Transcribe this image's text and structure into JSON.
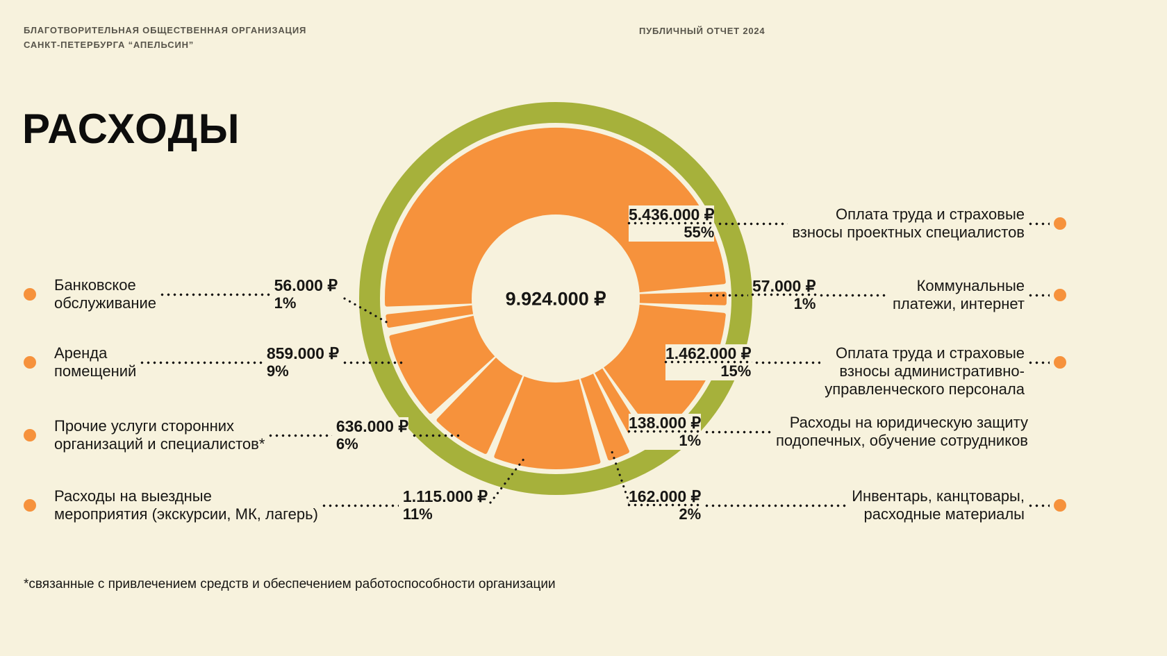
{
  "page": {
    "org_name": "БЛАГОТВОРИТЕЛЬНАЯ ОБЩЕСТВЕННАЯ ОРГАНИЗАЦИЯ\nСАНКТ-ПЕТЕРБУРГА “АПЕЛЬСИН”",
    "report_label": "ПУБЛИЧНЫЙ ОТЧЕТ 2024",
    "title": "РАСХОДЫ",
    "footnote": "*связанные с привлечением средств и обеспечением работоспособности организации"
  },
  "colors": {
    "background": "#f7f2dd",
    "orange": "#f6923c",
    "green": "#a6b13b",
    "text": "#171614"
  },
  "chart_data": {
    "type": "pie",
    "title": "РАСХОДЫ",
    "total_value": 9924000,
    "total_label": "9.924.000 ₽",
    "unit": "₽",
    "segments": [
      {
        "label": "Оплата труда и страховые\nвзносы проектных специалистов",
        "amount": "5.436.000 ₽",
        "percent": "55%",
        "value": 5436000,
        "pct": 55,
        "side": "right"
      },
      {
        "label": "Коммунальные\nплатежи, интернет",
        "amount": "57.000 ₽",
        "percent": "1%",
        "value": 57000,
        "pct": 1,
        "side": "right"
      },
      {
        "label": "Оплата труда и страховые\nвзносы административно-\nуправленческого персонала",
        "amount": "1.462.000 ₽",
        "percent": "15%",
        "value": 1462000,
        "pct": 15,
        "side": "right"
      },
      {
        "label": "Расходы на юридическую защиту\nподопечных, обучение сотрудников",
        "amount": "138.000 ₽",
        "percent": "1%",
        "value": 138000,
        "pct": 1,
        "side": "right"
      },
      {
        "label": "Инвентарь, канцтовары,\nрасходные материалы",
        "amount": "162.000 ₽",
        "percent": "2%",
        "value": 162000,
        "pct": 2,
        "side": "right"
      },
      {
        "label": "Банковское\nобслуживание",
        "amount": "56.000 ₽",
        "percent": "1%",
        "value": 56000,
        "pct": 1,
        "side": "left"
      },
      {
        "label": "Аренда\nпомещений",
        "amount": "859.000 ₽",
        "percent": "9%",
        "value": 859000,
        "pct": 9,
        "side": "left"
      },
      {
        "label": "Прочие услуги сторонних\nорганизаций и специалистов*",
        "amount": "636.000 ₽",
        "percent": "6%",
        "value": 636000,
        "pct": 6,
        "side": "left"
      },
      {
        "label": "Расходы на выездные\nмероприятия (экскурсии, МК, лагерь)",
        "amount": "1.115.000 ₽",
        "percent": "11%",
        "value": 1115000,
        "pct": 11,
        "side": "left"
      }
    ],
    "layout": {
      "style": "orange-slice donut",
      "clockwise_order_from_east": [
        1,
        2,
        3,
        4,
        8,
        7,
        6,
        5,
        0
      ],
      "gap_degrees": 4,
      "grid": false,
      "legend_position": "callouts-both-sides"
    }
  }
}
